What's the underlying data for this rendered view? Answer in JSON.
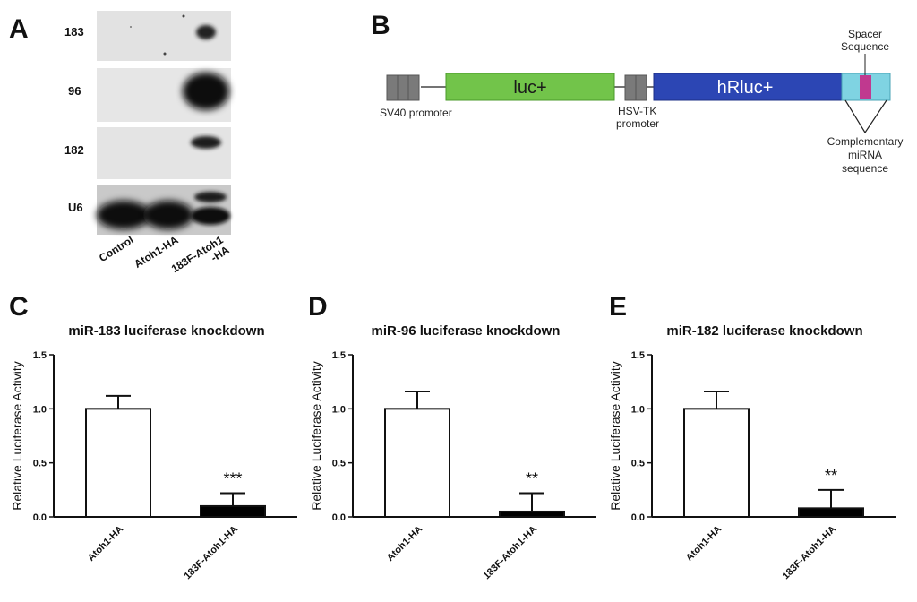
{
  "panels": {
    "a": "A",
    "b": "B",
    "c": "C",
    "d": "D",
    "e": "E"
  },
  "blot": {
    "rows": [
      "183",
      "96",
      "182",
      "U6"
    ],
    "lanes": [
      "Control",
      "Atoh1-HA",
      "183F-Atoh1 -HA"
    ],
    "lane3_line1": "183F-Atoh1",
    "lane3_line2": "-HA"
  },
  "construct": {
    "luc": "luc+",
    "hrluc": "hRluc+",
    "sv40": "SV40 promoter",
    "hsv_line1": "HSV-TK",
    "hsv_line2": "promoter",
    "spacer_line1": "Spacer",
    "spacer_line2": "Sequence",
    "comp_line1": "Complementary",
    "comp_line2": "miRNA",
    "comp_line3": "sequence",
    "colors": {
      "luc": "#72c44a",
      "hrluc": "#2c46b4",
      "site": "#7fd3e2",
      "spacer": "#c0398f",
      "promoter": "#7a7a7a"
    }
  },
  "chart_data": [
    {
      "type": "bar",
      "title": "miR-183 luciferase knockdown",
      "ylabel": "Relative Luciferase Activity",
      "categories": [
        "Atoh1-HA",
        "183F-Atoh1-HA"
      ],
      "values": [
        1.0,
        0.1
      ],
      "errors": [
        0.12,
        0.12
      ],
      "fills": [
        "#ffffff",
        "#000000"
      ],
      "significance": [
        "",
        "***"
      ],
      "ylim": [
        0,
        1.5
      ],
      "yticks": [
        "0.0",
        "0.5",
        "1.0",
        "1.5"
      ]
    },
    {
      "type": "bar",
      "title": "miR-96 luciferase knockdown",
      "ylabel": "Relative Luciferase Activity",
      "categories": [
        "Atoh1-HA",
        "183F-Atoh1-HA"
      ],
      "values": [
        1.0,
        0.05
      ],
      "errors": [
        0.16,
        0.17
      ],
      "fills": [
        "#ffffff",
        "#000000"
      ],
      "significance": [
        "",
        "**"
      ],
      "ylim": [
        0,
        1.5
      ],
      "yticks": [
        "0.0",
        "0.5",
        "1.0",
        "1.5"
      ]
    },
    {
      "type": "bar",
      "title": "miR-182 luciferase knockdown",
      "ylabel": "Relative Luciferase Activity",
      "categories": [
        "Atoh1-HA",
        "183F-Atoh1-HA"
      ],
      "values": [
        1.0,
        0.08
      ],
      "errors": [
        0.16,
        0.17
      ],
      "fills": [
        "#ffffff",
        "#000000"
      ],
      "significance": [
        "",
        "**"
      ],
      "ylim": [
        0,
        1.5
      ],
      "yticks": [
        "0.0",
        "0.5",
        "1.0",
        "1.5"
      ]
    }
  ]
}
